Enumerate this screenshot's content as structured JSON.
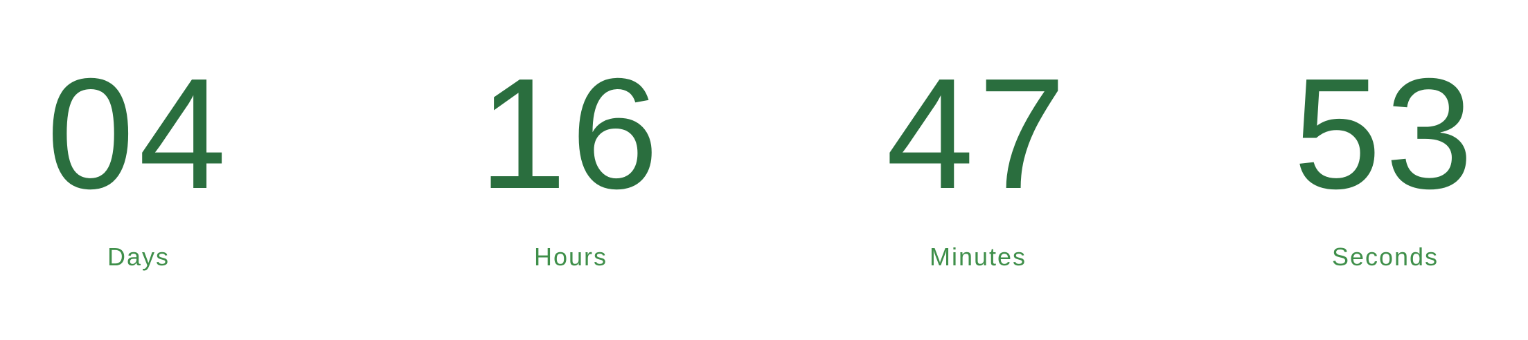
{
  "theme": {
    "digit_color": "#2a6e3e",
    "label_color": "#3f8f4a",
    "background": "#ffffff"
  },
  "countdown": {
    "days": {
      "value": "04",
      "label": "Days"
    },
    "hours": {
      "value": "16",
      "label": "Hours"
    },
    "minutes": {
      "value": "47",
      "label": "Minutes"
    },
    "seconds": {
      "value": "53",
      "label": "Seconds"
    }
  }
}
